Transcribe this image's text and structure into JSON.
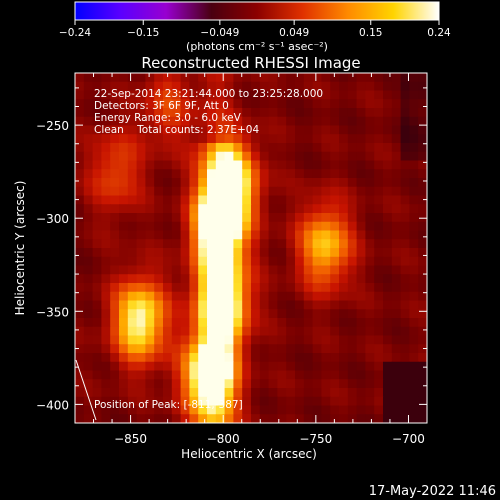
{
  "chart_data": {
    "type": "heatmap",
    "title": "Reconstructed RHESSI Image",
    "xlabel": "Heliocentric X (arcsec)",
    "ylabel": "Heliocentric Y (arcsec)",
    "xlim": [
      -880,
      -690
    ],
    "ylim": [
      -410,
      -222
    ],
    "xticks": [
      -850,
      -800,
      -750,
      -700
    ],
    "yticks": [
      -250,
      -300,
      -350,
      -400
    ],
    "xtick_labels": [
      "−850",
      "−800",
      "−750",
      "−700"
    ],
    "ytick_labels": [
      "−250",
      "−300",
      "−350",
      "−400"
    ],
    "colorbar": {
      "min": -0.24,
      "max": 0.24,
      "ticks": [
        -0.24,
        -0.15,
        -0.049,
        0.049,
        0.15,
        0.24
      ],
      "tick_labels": [
        "−0.24",
        "−0.15",
        "−0.049",
        "0.049",
        "0.15",
        "0.24"
      ],
      "unit_label": "(photons cm⁻² s⁻¹ asec⁻²)",
      "colors": [
        "#0000ff",
        "#5a00ff",
        "#9800d0",
        "#4a0010",
        "#8c0000",
        "#e03000",
        "#ff8a00",
        "#ffd400",
        "#ffffff"
      ]
    },
    "annotations": [
      "22-Sep-2014 23:21:44.000 to 23:25:28.000",
      "Detectors: 3F 6F 9F, Att 0",
      "Energy Range: 3.0 - 6.0 keV",
      "Clean    Total counts: 2.37E+04"
    ],
    "peak_label": "Position of Peak: [-811,-387]",
    "peak": [
      -811,
      -387
    ],
    "sources": [
      {
        "x": -802,
        "y": -305,
        "intensity": 0.9
      },
      {
        "x": -795,
        "y": -280,
        "intensity": 0.75
      },
      {
        "x": -800,
        "y": -345,
        "intensity": 0.85
      },
      {
        "x": -845,
        "y": -355,
        "intensity": 0.85
      },
      {
        "x": -808,
        "y": -385,
        "intensity": 0.9
      },
      {
        "x": -745,
        "y": -315,
        "intensity": 0.65
      },
      {
        "x": -858,
        "y": -275,
        "intensity": 0.35
      },
      {
        "x": -830,
        "y": -240,
        "intensity": 0.3
      }
    ]
  },
  "footer": {
    "date": "17-May-2022 11:46"
  }
}
